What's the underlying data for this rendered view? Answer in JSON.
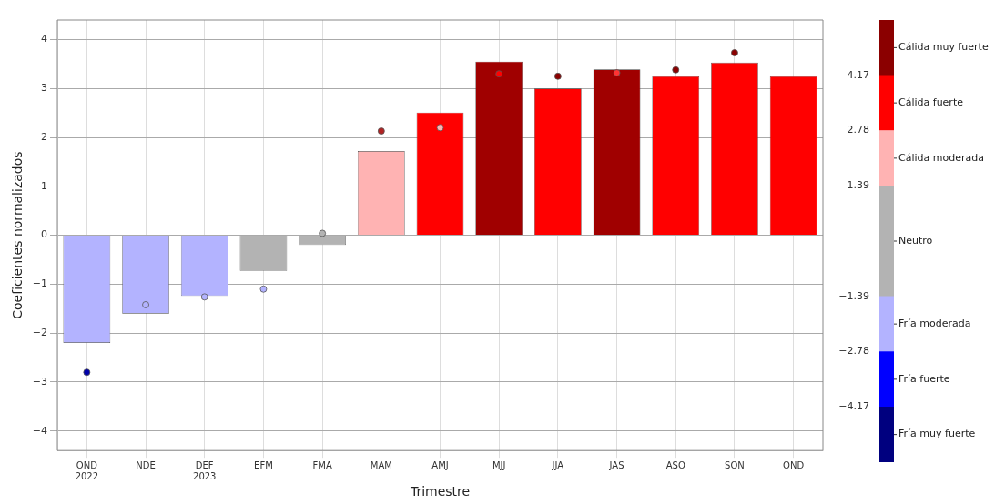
{
  "chart_data": [
    {
      "type": "bar",
      "xlabel": "Trimestre",
      "ylabel": "Coeficientes normalizados",
      "categories": [
        "OND\n2022",
        "NDE",
        "DEF\n2023",
        "EFM",
        "FMA",
        "MAM",
        "AMJ",
        "MJJ",
        "JJA",
        "JAS",
        "ASO",
        "SON",
        "OND"
      ],
      "series": [
        {
          "colors": [
            "#b3b3ff",
            "#b3b3ff",
            "#b3b3ff",
            "#b3b3b3",
            "#b3b3b3",
            "#ffb3b3",
            "#ff0000",
            "#a00000",
            "#ff0000",
            "#a00000",
            "#ff0000",
            "#ff0000",
            "#ff0000"
          ],
          "values": [
            -2.2,
            -1.6,
            -1.24,
            -0.73,
            -0.2,
            1.72,
            2.51,
            3.55,
            3.0,
            3.39,
            3.25,
            3.53,
            3.25
          ]
        },
        {
          "type": "scatter",
          "x": [
            "OND\n2022",
            "NDE",
            "DEF\n2023",
            "EFM",
            "FMA",
            "MAM",
            "AMJ",
            "MJJ",
            "JJA",
            "JAS",
            "ASO",
            "SON"
          ],
          "colors": [
            "#0000aa",
            "#b3b3ff",
            "#b3b3ff",
            "#b3b3ff",
            "#b3b3b3",
            "#b22222",
            "#ffb3b3",
            "#ff0000",
            "#8b0000",
            "#ff3333",
            "#8b0000",
            "#8b0000"
          ],
          "values": [
            -2.8,
            -1.42,
            -1.26,
            -1.1,
            0.04,
            2.13,
            2.2,
            3.3,
            3.25,
            3.32,
            3.38,
            3.73
          ]
        }
      ],
      "ylim": [
        -4.4,
        4.4
      ],
      "yticks": [
        -4,
        -3,
        -2,
        -1,
        0,
        1,
        2,
        3,
        4
      ],
      "grid": true,
      "legend": false,
      "marker": "circle"
    },
    {
      "type": "bar",
      "categories": [
        null
      ],
      "tick_labels": "y",
      "legend": false,
      "ylim": [
        -5.56,
        5.56
      ],
      "yticks": [
        -4.17,
        -2.78,
        -1.39,
        1.39,
        2.78,
        4.17
      ],
      "series": [
        {
          "name": "Fría muy fuerte",
          "color": "#00007f",
          "base": [
            -5.56
          ],
          "values": [
            1.39
          ]
        },
        {
          "name": "Fría fuerte",
          "color": "#0000ff",
          "base": [
            -4.17
          ],
          "values": [
            1.39
          ]
        },
        {
          "name": "Fría moderada",
          "color": "#b3b3ff",
          "base": [
            -2.78
          ],
          "values": [
            1.39
          ]
        },
        {
          "name": "Neutro",
          "color": "#b3b3b3",
          "base": [
            -1.39
          ],
          "values": [
            2.78
          ]
        },
        {
          "name": "Cálida moderada",
          "color": "#ffb3b3",
          "base": [
            1.39
          ],
          "values": [
            1.39
          ]
        },
        {
          "name": "Cálida fuerte",
          "color": "#ff0000",
          "base": [
            2.78
          ],
          "values": [
            1.39
          ]
        },
        {
          "name": "Cálida muy fuerte",
          "color": "#8b0000",
          "base": [
            4.17
          ],
          "values": [
            1.39
          ]
        }
      ]
    }
  ]
}
